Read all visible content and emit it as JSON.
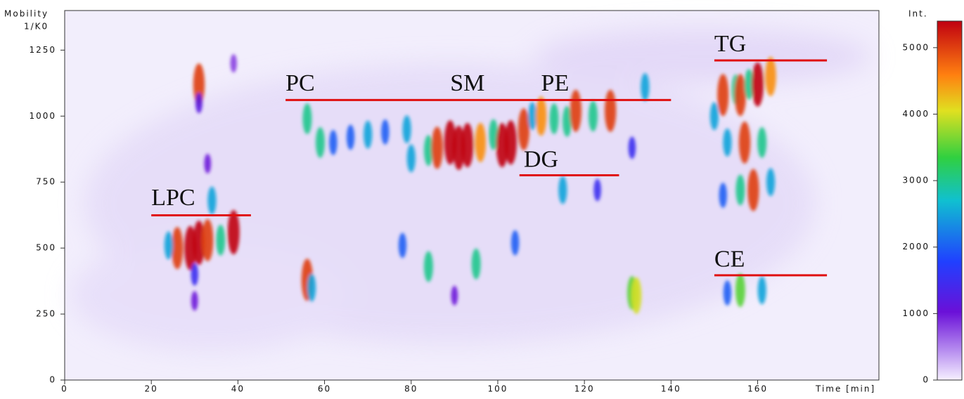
{
  "chart_data": {
    "type": "scatter",
    "ylabel": [
      "Mobility",
      "1/K0"
    ],
    "xlabel": "Time [min]",
    "colorbar_label": "Int.",
    "xlim": [
      0,
      188
    ],
    "xticks": [
      0,
      20,
      40,
      60,
      80,
      100,
      120,
      140,
      160
    ],
    "ylim": [
      0,
      1400
    ],
    "yticks": [
      0,
      250,
      500,
      750,
      1000,
      1250
    ],
    "clim": [
      0,
      5400
    ],
    "cticks": [
      0,
      1000,
      2000,
      3000,
      4000,
      5000
    ],
    "annotations": [
      {
        "text": "LPC",
        "x": 20,
        "y": 683
      },
      {
        "text": "PC",
        "x": 51,
        "y": 1117
      },
      {
        "text": "SM",
        "x": 89,
        "y": 1117
      },
      {
        "text": "PE",
        "x": 110,
        "y": 1117
      },
      {
        "text": "DG",
        "x": 106,
        "y": 829
      },
      {
        "text": "TG",
        "x": 150,
        "y": 1267
      },
      {
        "text": "CE",
        "x": 150,
        "y": 451
      }
    ],
    "lines": [
      {
        "x": [
          20,
          43
        ],
        "y": 624
      },
      {
        "x": [
          51,
          140
        ],
        "y": 1061
      },
      {
        "x": [
          105,
          128
        ],
        "y": 776
      },
      {
        "x": [
          150,
          176
        ],
        "y": 1211
      },
      {
        "x": [
          150,
          176
        ],
        "y": 397
      }
    ],
    "line_color": "#e01010",
    "x": [
      26,
      29,
      31,
      33,
      36,
      39,
      24,
      30,
      30,
      31,
      31,
      39,
      33,
      34,
      56,
      59,
      62,
      66,
      70,
      74,
      79,
      80,
      84,
      86,
      89,
      91,
      93,
      96,
      99,
      101,
      103,
      106,
      108,
      110,
      113,
      116,
      118,
      122,
      126,
      134,
      131,
      115,
      123,
      150,
      152,
      155,
      156,
      158,
      160,
      163,
      153,
      157,
      161,
      152,
      156,
      159,
      163,
      153,
      156,
      161,
      56,
      57,
      84,
      95,
      78,
      90,
      104,
      131,
      132
    ],
    "y": [
      500,
      500,
      520,
      530,
      530,
      560,
      510,
      400,
      300,
      1120,
      1050,
      1200,
      820,
      680,
      990,
      900,
      900,
      920,
      930,
      940,
      950,
      840,
      870,
      880,
      900,
      880,
      890,
      900,
      930,
      890,
      900,
      950,
      1000,
      1000,
      990,
      980,
      1020,
      1000,
      1020,
      1110,
      880,
      720,
      720,
      1000,
      1080,
      1100,
      1080,
      1120,
      1120,
      1150,
      900,
      900,
      900,
      700,
      720,
      720,
      750,
      330,
      340,
      340,
      380,
      350,
      430,
      440,
      510,
      320,
      520,
      330,
      320
    ],
    "intensity": [
      5000,
      5400,
      5400,
      5000,
      3000,
      5400,
      2500,
      1500,
      1000,
      5000,
      1200,
      800,
      1000,
      2500,
      3000,
      3000,
      2000,
      2000,
      2500,
      2000,
      2500,
      2500,
      3000,
      5000,
      5400,
      5400,
      5400,
      4500,
      3000,
      5400,
      5400,
      5000,
      2500,
      4500,
      3000,
      3000,
      5000,
      3000,
      5000,
      2500,
      1500,
      2500,
      1500,
      2500,
      5000,
      3000,
      5000,
      3000,
      5400,
      4500,
      2500,
      5000,
      3000,
      2000,
      3000,
      5000,
      2500,
      2000,
      3500,
      2500,
      5000,
      2500,
      3000,
      3000,
      2000,
      1000,
      2000,
      3500,
      4000
    ]
  }
}
